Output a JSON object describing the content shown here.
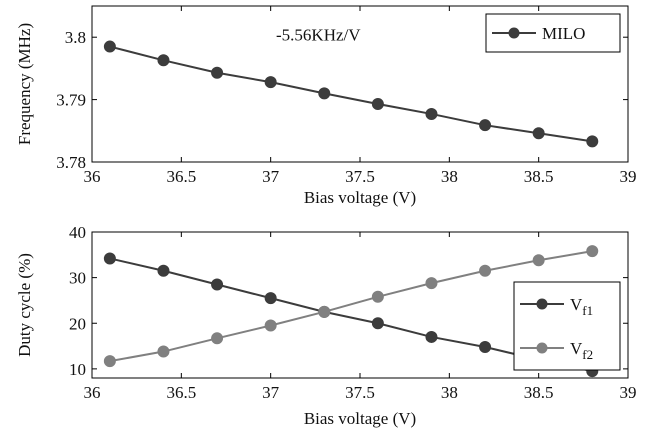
{
  "chart_data": [
    {
      "type": "line",
      "title": "",
      "xlabel": "Bias voltage (V)",
      "ylabel": "Frequency (MHz)",
      "xlim": [
        36,
        39
      ],
      "ylim": [
        3.78,
        3.805
      ],
      "xticks": [
        36,
        36.5,
        37,
        37.5,
        38,
        38.5,
        39
      ],
      "xtick_labels": [
        "36",
        "36.5",
        "37",
        "37.5",
        "38",
        "38.5",
        "39"
      ],
      "yticks": [
        3.78,
        3.79,
        3.8
      ],
      "ytick_labels": [
        "3.78",
        "3.79",
        "3.8"
      ],
      "grid": false,
      "legend_position": "top-right",
      "annotation": "-5.56KHz/V",
      "series": [
        {
          "name": "MILO",
          "color": "#3c3c3c",
          "x": [
            36.1,
            36.4,
            36.7,
            37.0,
            37.3,
            37.6,
            37.9,
            38.2,
            38.5,
            38.8
          ],
          "y": [
            3.7985,
            3.7963,
            3.7943,
            3.7928,
            3.791,
            3.7893,
            3.7877,
            3.7859,
            3.7846,
            3.7833
          ]
        }
      ]
    },
    {
      "type": "line",
      "title": "",
      "xlabel": "Bias voltage (V)",
      "ylabel": "Duty cycle (%)",
      "xlim": [
        36,
        39
      ],
      "ylim": [
        8,
        40
      ],
      "xticks": [
        36,
        36.5,
        37,
        37.5,
        38,
        38.5,
        39
      ],
      "xtick_labels": [
        "36",
        "36.5",
        "37",
        "37.5",
        "38",
        "38.5",
        "39"
      ],
      "yticks": [
        10,
        20,
        30,
        40
      ],
      "ytick_labels": [
        "10",
        "20",
        "30",
        "40"
      ],
      "grid": false,
      "legend_position": "bottom-right",
      "series": [
        {
          "name": "V",
          "subscript": "f1",
          "color": "#3c3c3c",
          "x": [
            36.1,
            36.4,
            36.7,
            37.0,
            37.3,
            37.6,
            37.9,
            38.2,
            38.5,
            38.8
          ],
          "y": [
            34.2,
            31.5,
            28.5,
            25.5,
            22.5,
            20.0,
            17.0,
            14.8,
            12.0,
            9.5
          ]
        },
        {
          "name": "V",
          "subscript": "f2",
          "color": "#808080",
          "x": [
            36.1,
            36.4,
            36.7,
            37.0,
            37.3,
            37.6,
            37.9,
            38.2,
            38.5,
            38.8
          ],
          "y": [
            11.7,
            13.8,
            16.7,
            19.5,
            22.5,
            25.8,
            28.8,
            31.5,
            33.8,
            35.8
          ]
        }
      ]
    }
  ]
}
